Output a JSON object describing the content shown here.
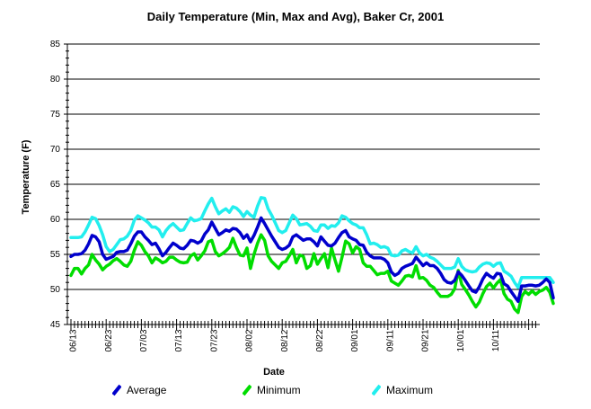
{
  "chart_data": {
    "type": "line",
    "title": "Daily Temperature (Min, Max and Avg), Baker Cr, 2001",
    "xlabel": "Date",
    "ylabel": "Temperature (F)",
    "ylim": [
      45,
      85
    ],
    "yticks": [
      45,
      50,
      55,
      60,
      65,
      70,
      75,
      80,
      85
    ],
    "x_tick_labels": [
      "06/13",
      "06/23",
      "07/03",
      "07/13",
      "07/23",
      "08/02",
      "08/12",
      "08/22",
      "09/01",
      "09/11",
      "09/21",
      "10/01",
      "10/11"
    ],
    "x_start": "06/13",
    "grid": "horizontal",
    "legend_position": "bottom",
    "series": [
      {
        "name": "Average",
        "color": "#0000cc",
        "values": [
          54.7,
          55,
          55,
          55.1,
          55.6,
          56.5,
          57.7,
          57.5,
          56.8,
          55,
          54.3,
          54.5,
          54.7,
          55.3,
          55.4,
          55.4,
          55.6,
          56.5,
          57.6,
          58.2,
          58.2,
          57.5,
          57,
          56.4,
          56.6,
          55.8,
          54.8,
          55.3,
          56,
          56.6,
          56.3,
          55.9,
          55.8,
          56.3,
          57,
          56.9,
          56.6,
          56.9,
          57.9,
          58.5,
          59.6,
          58.7,
          57.8,
          58.1,
          58.5,
          58.3,
          58.7,
          58.6,
          58.1,
          57.3,
          57.8,
          56.8,
          57.7,
          58.9,
          60.2,
          59.4,
          58.5,
          57.6,
          56.8,
          56,
          55.7,
          55.9,
          56.3,
          57.5,
          57.8,
          57.4,
          57,
          57.2,
          57.2,
          56.8,
          56.2,
          57.5,
          56.9,
          56.3,
          56.2,
          56.6,
          57.4,
          58.1,
          58.4,
          57.5,
          57.2,
          57,
          56.4,
          56.3,
          55.3,
          54.8,
          54.5,
          54.5,
          54.5,
          54.3,
          53.8,
          52.5,
          52,
          52.3,
          53,
          53.3,
          53.5,
          53.7,
          54.6,
          54,
          53.4,
          53.8,
          53.4,
          53.4,
          53,
          52.3,
          51.4,
          51,
          50.9,
          51.3,
          52.5,
          52,
          51.3,
          50.5,
          49.8,
          49.6,
          50.4,
          51.5,
          52.3,
          51.9,
          51.6,
          52.3,
          52.2,
          50.8,
          50.5,
          49.7,
          49,
          48.3,
          50.5,
          50.5,
          50.6,
          50.6,
          50.5,
          50.6,
          51,
          51.5,
          51,
          48.8
        ]
      },
      {
        "name": "Minimum",
        "color": "#00dd00",
        "values": [
          52,
          53,
          53,
          52.2,
          53,
          53.5,
          55,
          54.2,
          53.6,
          52.8,
          53.3,
          53.6,
          54.1,
          54.4,
          54,
          53.5,
          53.3,
          54,
          55.6,
          56.8,
          56.3,
          55.4,
          54.8,
          53.8,
          54.5,
          54.2,
          53.8,
          54,
          54.6,
          54.6,
          54.2,
          53.9,
          53.8,
          53.9,
          54.8,
          55.1,
          54.2,
          54.8,
          55.5,
          56.8,
          57,
          55.4,
          54.8,
          55.1,
          55.5,
          56,
          57.3,
          56,
          54.9,
          54.8,
          55.9,
          53,
          55,
          56.6,
          57.8,
          57,
          54.8,
          54,
          53.5,
          53,
          53.8,
          54,
          54.8,
          55.7,
          53.8,
          54.9,
          54.7,
          53,
          53.4,
          55.1,
          53.6,
          54.4,
          55.1,
          53.1,
          55.9,
          54.2,
          52.6,
          54.6,
          56.9,
          56.5,
          55.2,
          56.1,
          55.7,
          53.8,
          53.3,
          53.3,
          52.7,
          52.1,
          52.3,
          52.3,
          52.6,
          51.2,
          50.9,
          50.6,
          51.2,
          51.9,
          52,
          51.8,
          53.4,
          51.6,
          51.7,
          51.3,
          50.6,
          50.3,
          49.6,
          49,
          49,
          49,
          49.3,
          50.1,
          52.7,
          50.7,
          50,
          49.2,
          48.3,
          47.5,
          48.2,
          49.4,
          50.4,
          50.9,
          50.2,
          50.9,
          51.4,
          49.4,
          48.6,
          48.3,
          47.2,
          46.7,
          49,
          49.7,
          49.3,
          49.8,
          49.3,
          49.7,
          49.9,
          50.3,
          49.6,
          48
        ]
      },
      {
        "name": "Maximum",
        "color": "#22eeee",
        "values": [
          57.4,
          57.4,
          57.4,
          57.5,
          58.2,
          59.2,
          60.3,
          60.1,
          59.1,
          57.8,
          56.1,
          55.4,
          55.7,
          56.4,
          57.1,
          57.2,
          57.6,
          58.4,
          59.9,
          60.5,
          60.2,
          59.9,
          59.5,
          58.9,
          58.9,
          58.5,
          57.5,
          58.4,
          59,
          59.4,
          58.9,
          58.4,
          58.5,
          59.4,
          60.2,
          59.8,
          59.9,
          60.1,
          61.2,
          62.2,
          63,
          61.8,
          60.8,
          61.2,
          61.5,
          61,
          61.8,
          61.6,
          61.1,
          60.4,
          61.1,
          60.6,
          60.3,
          61.9,
          63.1,
          63,
          61.5,
          60.6,
          59.5,
          58.4,
          58.1,
          58.4,
          59.5,
          60.6,
          60.1,
          59.2,
          59.3,
          59.4,
          59,
          58.4,
          58.3,
          59.2,
          59.2,
          58.7,
          59.1,
          59,
          59.5,
          60.5,
          60.3,
          59.8,
          59.4,
          59.2,
          58.8,
          58.8,
          57.8,
          56.5,
          56.6,
          56.4,
          56,
          56.1,
          55.9,
          54.9,
          54.8,
          54.9,
          55.5,
          55.7,
          55.4,
          55.2,
          56.1,
          55.2,
          54.8,
          55,
          54.6,
          54.4,
          54,
          53.5,
          53,
          53,
          53,
          53.2,
          54.4,
          53.3,
          52.8,
          52.6,
          52.5,
          52.6,
          53.2,
          53.6,
          53.8,
          53.7,
          53.3,
          53.7,
          53.8,
          52.6,
          52.3,
          51.9,
          51,
          50.3,
          51.7,
          51.7,
          51.7,
          51.7,
          51.7,
          51.7,
          51.7,
          51.7,
          51.7,
          51
        ]
      }
    ]
  }
}
